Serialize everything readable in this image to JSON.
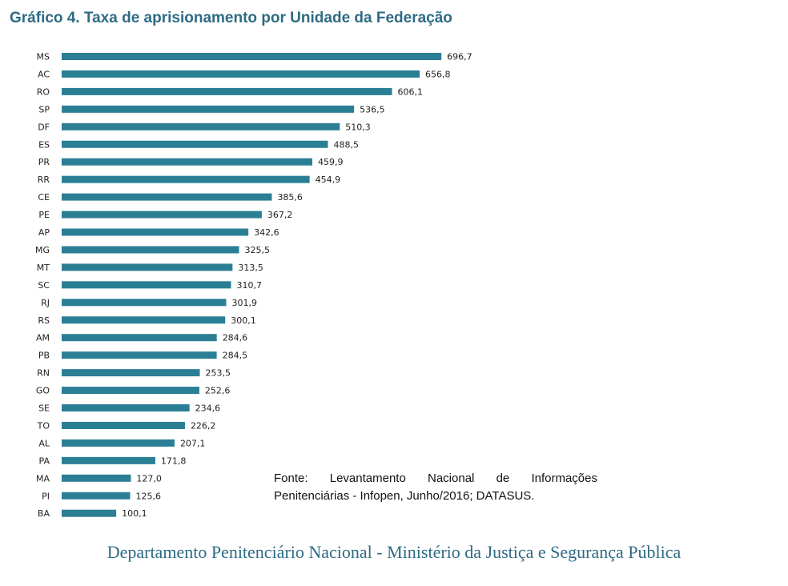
{
  "chart_data": {
    "type": "bar",
    "orientation": "horizontal",
    "title": "Gráfico 4. Taxa de aprisionamento por Unidade da Federação",
    "categories": [
      "MS",
      "AC",
      "RO",
      "SP",
      "DF",
      "ES",
      "PR",
      "RR",
      "CE",
      "PE",
      "AP",
      "MG",
      "MT",
      "SC",
      "RJ",
      "RS",
      "AM",
      "PB",
      "RN",
      "GO",
      "SE",
      "TO",
      "AL",
      "PA",
      "MA",
      "PI",
      "BA"
    ],
    "values": [
      696.7,
      656.8,
      606.1,
      536.5,
      510.3,
      488.5,
      459.9,
      454.9,
      385.6,
      367.2,
      342.6,
      325.5,
      313.5,
      310.7,
      301.9,
      300.1,
      284.6,
      284.5,
      253.5,
      252.6,
      234.6,
      226.2,
      207.1,
      171.8,
      127.0,
      125.6,
      100.1
    ],
    "value_labels": [
      "696,7",
      "656,8",
      "606,1",
      "536,5",
      "510,3",
      "488,5",
      "459,9",
      "454,9",
      "385,6",
      "367,2",
      "342,6",
      "325,5",
      "313,5",
      "310,7",
      "301,9",
      "300,1",
      "284,6",
      "284,5",
      "253,5",
      "252,6",
      "234,6",
      "226,2",
      "207,1",
      "171,8",
      "127,0",
      "125,6",
      "100,1"
    ],
    "bar_color": "#2b7f95",
    "grid": false,
    "legend": "none"
  },
  "source_note": "Fonte: Levantamento Nacional de Informações Penitenciárias - Infopen, Junho/2016; DATASUS.",
  "footer": "Departamento Penitenciário Nacional - Ministério da Justiça e Segurança Pública",
  "colors": {
    "title": "#2e6b84",
    "footer": "#2e6b84",
    "bars": "#2b7f95"
  }
}
